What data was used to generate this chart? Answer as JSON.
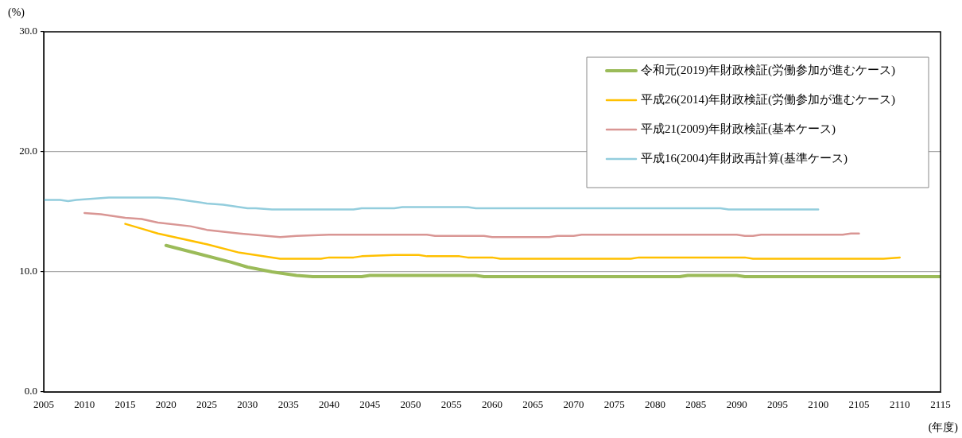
{
  "chart_data": {
    "type": "line",
    "xlabel": "(年度)",
    "ylabel": "(%)",
    "xlim": [
      2005,
      2115
    ],
    "xticks": [
      2005,
      2010,
      2015,
      2020,
      2025,
      2030,
      2035,
      2040,
      2045,
      2050,
      2055,
      2060,
      2065,
      2070,
      2075,
      2080,
      2085,
      2090,
      2095,
      2100,
      2105,
      2110,
      2115
    ],
    "ylim": [
      0,
      30
    ],
    "yticks": [
      {
        "value": 0,
        "label": "0.0"
      },
      {
        "value": 10,
        "label": "10.0"
      },
      {
        "value": 20,
        "label": "20.0"
      },
      {
        "value": 30,
        "label": "30.0"
      }
    ],
    "grid": "y",
    "legend": "top right",
    "marker": "none",
    "line_style": "solid",
    "series": [
      {
        "name": "令和元(2019)年財政検証(労働参加が進むケース)",
        "color": "#9bbb59",
        "x": [
          2020,
          2028,
          2030,
          2033,
          2035,
          2036,
          2038,
          2044,
          2045,
          2058,
          2059,
          2083,
          2084,
          2090,
          2091,
          2115
        ],
        "values": [
          12.2,
          10.8,
          10.4,
          10.0,
          9.8,
          9.7,
          9.6,
          9.6,
          9.7,
          9.7,
          9.6,
          9.6,
          9.7,
          9.7,
          9.6,
          9.6
        ]
      },
      {
        "name": "平成26(2014)年財政検証(労働参加が進むケース)",
        "color": "#ffc000",
        "x": [
          2015,
          2017,
          2019,
          2021,
          2025,
          2029,
          2034,
          2039,
          2040,
          2043,
          2044,
          2048,
          2051,
          2052,
          2056,
          2057,
          2060,
          2061,
          2077,
          2078,
          2091,
          2092,
          2108,
          2110
        ],
        "values": [
          14.0,
          13.6,
          13.2,
          12.9,
          12.3,
          11.6,
          11.1,
          11.1,
          11.2,
          11.2,
          11.3,
          11.4,
          11.4,
          11.3,
          11.3,
          11.2,
          11.2,
          11.1,
          11.1,
          11.2,
          11.2,
          11.1,
          11.1,
          11.2
        ]
      },
      {
        "name": "平成21(2009)年財政検証(基本ケース)",
        "color": "#d99694",
        "x": [
          2010,
          2012,
          2015,
          2017,
          2019,
          2023,
          2025,
          2029,
          2034,
          2036,
          2040,
          2052,
          2053,
          2059,
          2060,
          2067,
          2068,
          2070,
          2071,
          2090,
          2091,
          2092,
          2093,
          2103,
          2104,
          2105
        ],
        "values": [
          14.9,
          14.8,
          14.5,
          14.4,
          14.1,
          13.8,
          13.5,
          13.2,
          12.9,
          13.0,
          13.1,
          13.1,
          13.0,
          13.0,
          12.9,
          12.9,
          13.0,
          13.0,
          13.1,
          13.1,
          13.0,
          13.0,
          13.1,
          13.1,
          13.2,
          13.2
        ]
      },
      {
        "name": "平成16(2004)年財政再計算(基準ケース)",
        "color": "#93cddd",
        "x": [
          2005,
          2007,
          2008,
          2009,
          2011,
          2013,
          2019,
          2021,
          2025,
          2027,
          2030,
          2031,
          2033,
          2043,
          2044,
          2048,
          2049,
          2057,
          2058,
          2088,
          2089,
          2100
        ],
        "values": [
          16.0,
          16.0,
          15.9,
          16.0,
          16.1,
          16.2,
          16.2,
          16.1,
          15.7,
          15.6,
          15.3,
          15.3,
          15.2,
          15.2,
          15.3,
          15.3,
          15.4,
          15.4,
          15.3,
          15.3,
          15.2,
          15.2
        ]
      }
    ]
  }
}
